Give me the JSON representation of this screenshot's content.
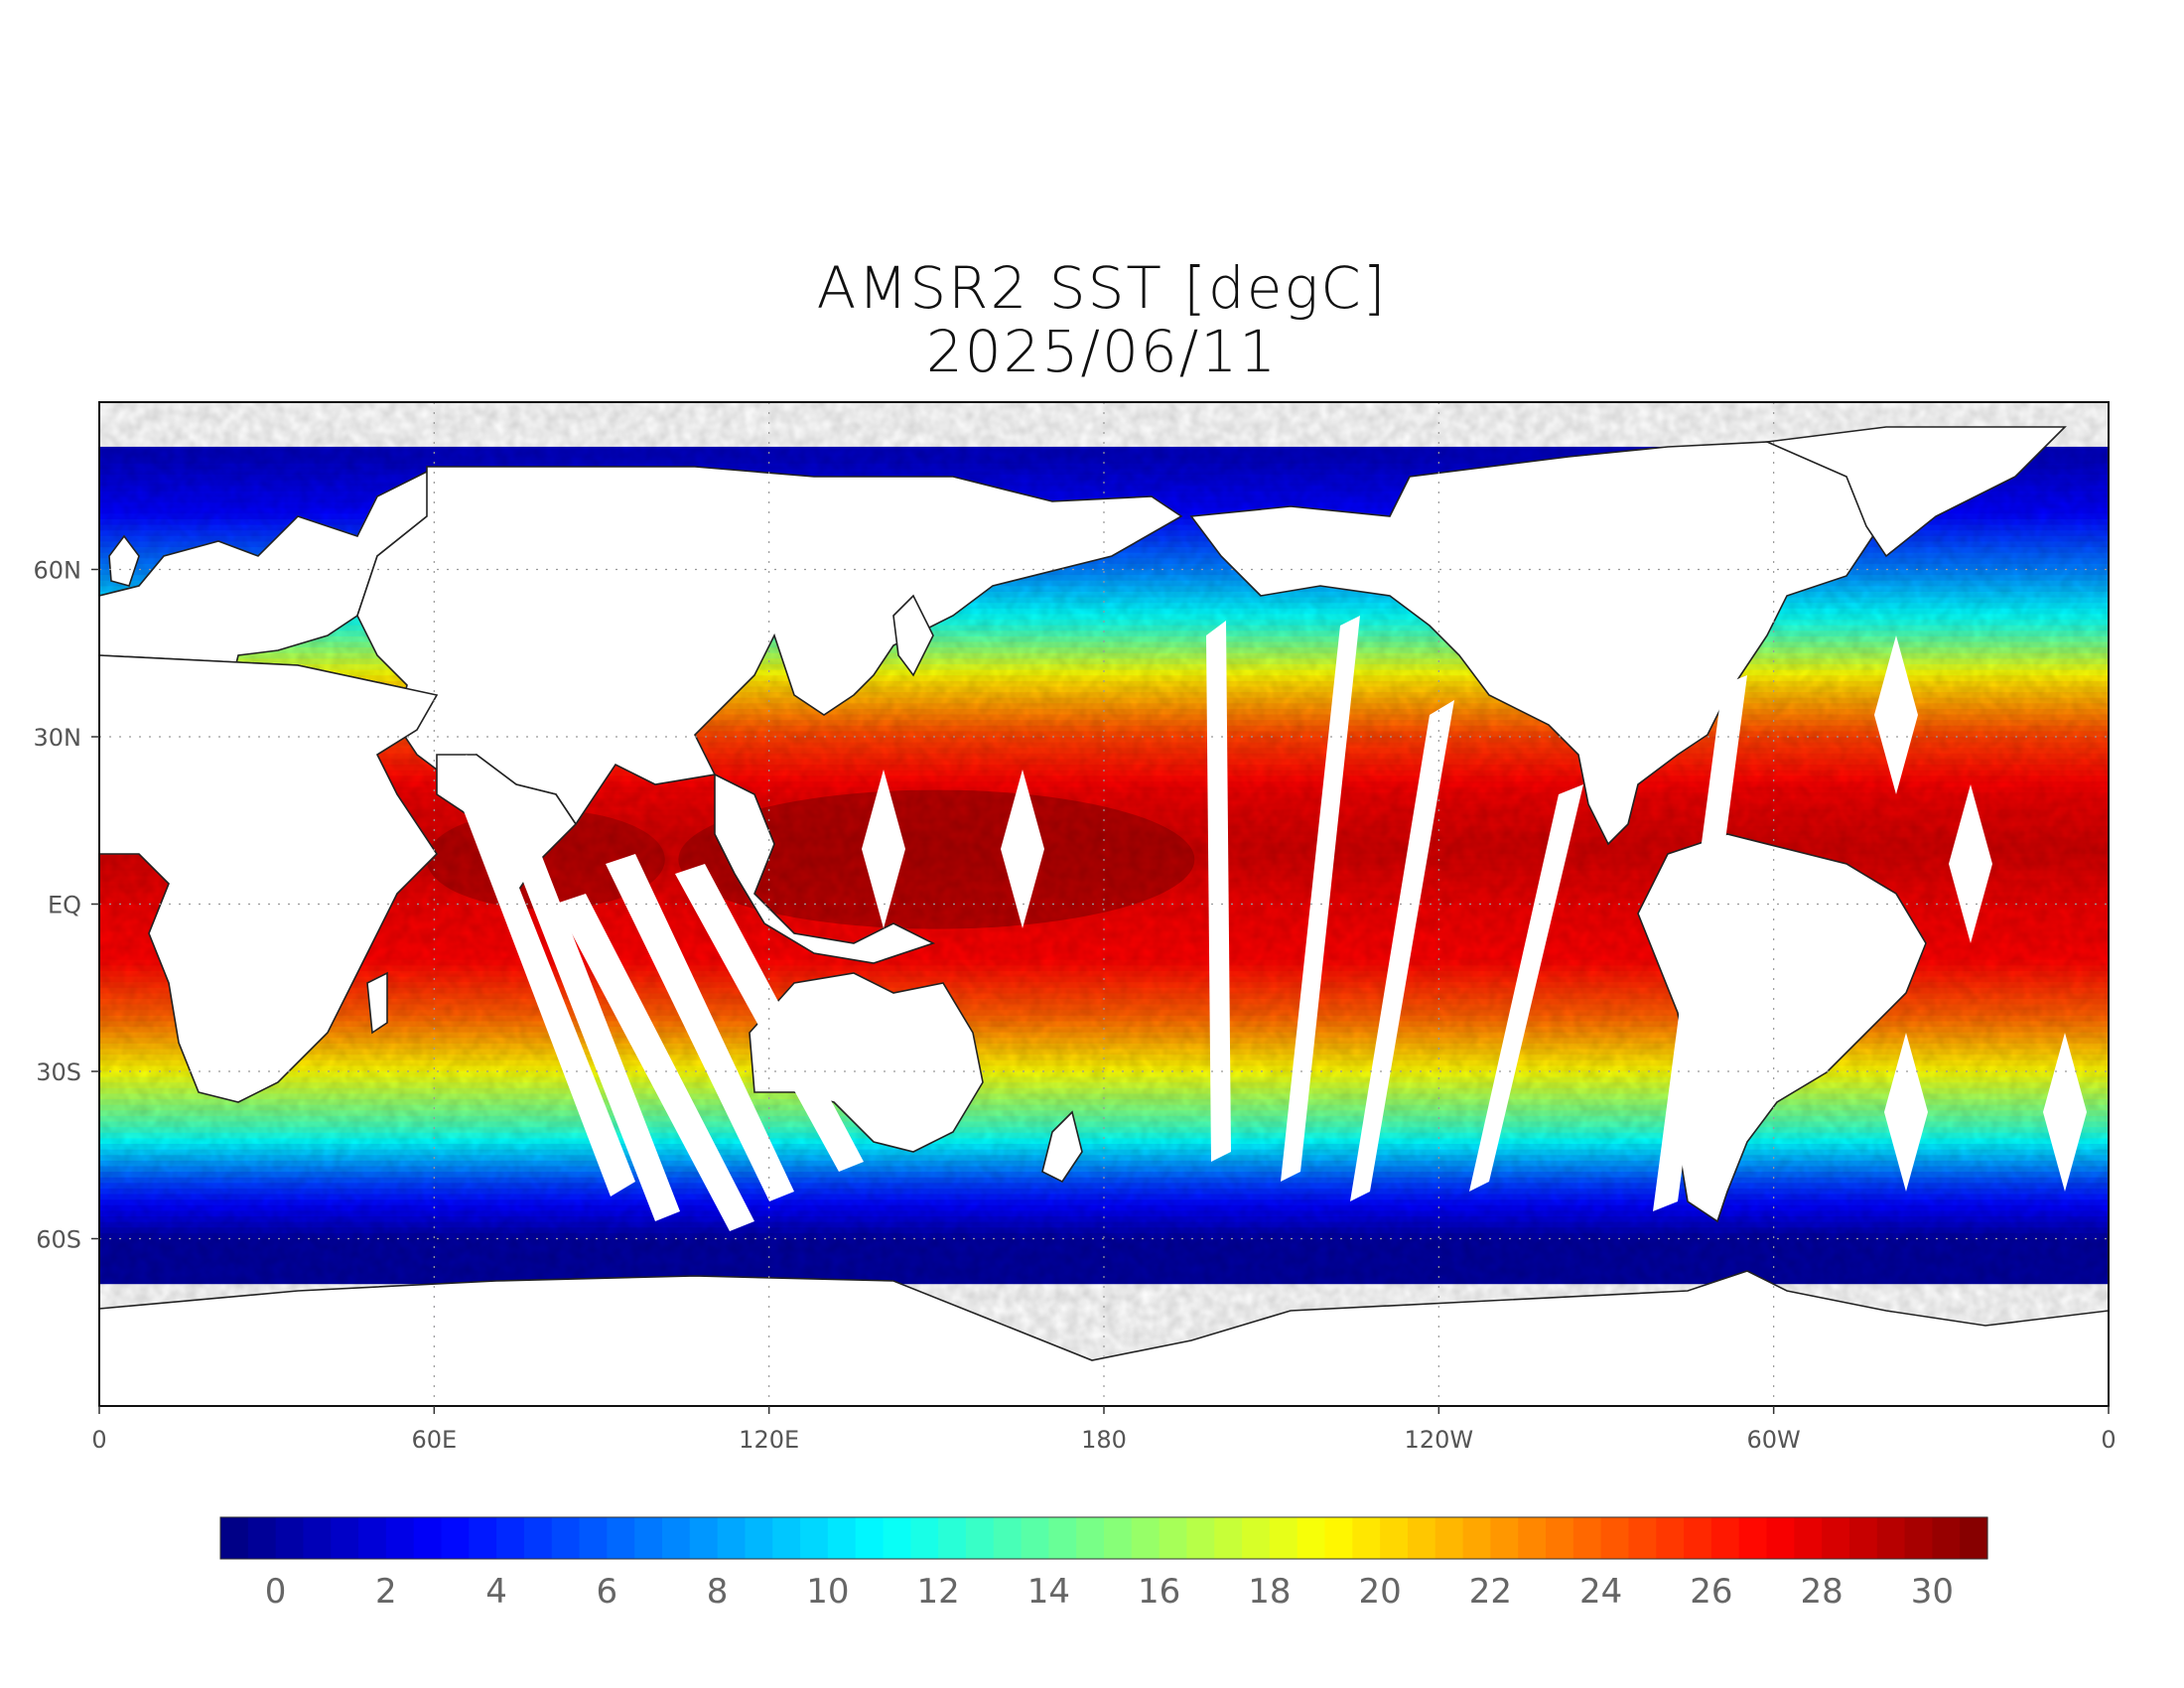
{
  "title": {
    "line1": "AMSR2 SST [degC]",
    "line2": "2025/06/11"
  },
  "axes": {
    "lon_range": [
      0,
      360
    ],
    "lat_range": [
      -90,
      90
    ],
    "x_ticks": [
      {
        "lon": 0,
        "label": "0"
      },
      {
        "lon": 60,
        "label": "60E"
      },
      {
        "lon": 120,
        "label": "120E"
      },
      {
        "lon": 180,
        "label": "180"
      },
      {
        "lon": 240,
        "label": "120W"
      },
      {
        "lon": 300,
        "label": "60W"
      },
      {
        "lon": 360,
        "label": "0"
      }
    ],
    "y_ticks": [
      {
        "lat": 60,
        "label": "60N"
      },
      {
        "lat": 30,
        "label": "30N"
      },
      {
        "lat": 0,
        "label": "EQ"
      },
      {
        "lat": -30,
        "label": "30S"
      },
      {
        "lat": -60,
        "label": "60S"
      }
    ],
    "grid": "dotted"
  },
  "colorbar": {
    "min": -1,
    "max": 31,
    "step": 0.5,
    "labels": [
      "0",
      "2",
      "4",
      "6",
      "8",
      "10",
      "12",
      "14",
      "16",
      "18",
      "20",
      "22",
      "24",
      "26",
      "28",
      "30"
    ],
    "label_values": [
      0,
      2,
      4,
      6,
      8,
      10,
      12,
      14,
      16,
      18,
      20,
      22,
      24,
      26,
      28,
      30
    ],
    "colormap": "jet",
    "no_data_color": "#ffffff"
  },
  "chart_data": {
    "type": "heatmap",
    "title": "AMSR2 SST [degC]",
    "subtitle": "2025/06/11",
    "x": "longitude",
    "y": "latitude",
    "units": "degC",
    "xlim": [
      0,
      360
    ],
    "ylim": [
      -90,
      90
    ],
    "zlim": [
      -1,
      31
    ],
    "approx_zonal_mean_sst": [
      {
        "lat": 80,
        "value": 1
      },
      {
        "lat": 70,
        "value": 3
      },
      {
        "lat": 60,
        "value": 7
      },
      {
        "lat": 50,
        "value": 12
      },
      {
        "lat": 40,
        "value": 20
      },
      {
        "lat": 30,
        "value": 25
      },
      {
        "lat": 20,
        "value": 27.5
      },
      {
        "lat": 10,
        "value": 28.5
      },
      {
        "lat": 0,
        "value": 27.5
      },
      {
        "lat": -10,
        "value": 27
      },
      {
        "lat": -20,
        "value": 24
      },
      {
        "lat": -30,
        "value": 19
      },
      {
        "lat": -40,
        "value": 13
      },
      {
        "lat": -50,
        "value": 5
      },
      {
        "lat": -60,
        "value": 0
      }
    ],
    "notes_visible": "white areas are land or missing swath data"
  }
}
